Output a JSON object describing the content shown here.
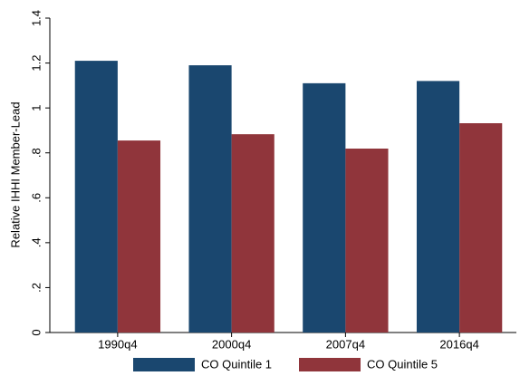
{
  "chart_data": {
    "type": "bar",
    "categories": [
      "1990q4",
      "2000q4",
      "2007q4",
      "2016q4"
    ],
    "series": [
      {
        "name": "CO Quintile 1",
        "color": "#1a476f",
        "values": [
          1.21,
          1.19,
          1.11,
          1.12
        ]
      },
      {
        "name": "CO Quintile 5",
        "color": "#90353b",
        "values": [
          0.855,
          0.883,
          0.819,
          0.932
        ]
      }
    ],
    "ylabel": "Relative IHHI Member-Lead",
    "ylim": [
      0,
      1.4
    ],
    "yticks": [
      0,
      {
        "value": 0.2,
        "label": ".2"
      },
      {
        "value": 0.4,
        "label": ".4"
      },
      {
        "value": 0.6,
        "label": ".6"
      },
      {
        "value": 0.8,
        "label": ".8"
      },
      1,
      {
        "value": 1.2,
        "label": "1.2"
      },
      {
        "value": 1.4,
        "label": "1.4"
      }
    ],
    "legend": "bottom"
  }
}
